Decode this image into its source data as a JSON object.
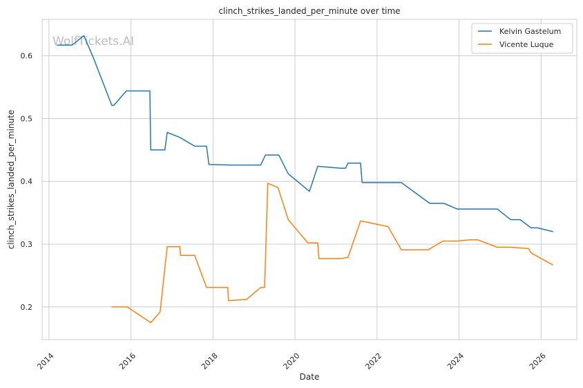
{
  "chart_data": {
    "type": "line",
    "title": "clinch_strikes_landed_per_minute over time",
    "xlabel": "Date",
    "ylabel": "clinch_strikes_landed_per_minute",
    "xlim": [
      "2013-11-01",
      "2026-11-15"
    ],
    "ylim": [
      0.148,
      0.658
    ],
    "x_ticks": [
      "2014",
      "2016",
      "2018",
      "2020",
      "2022",
      "2024",
      "2026"
    ],
    "y_ticks": [
      0.2,
      0.3,
      0.4,
      0.5,
      0.6
    ],
    "grid": true,
    "legend_position": "top-right",
    "watermark": "WolfTickets.AI",
    "series": [
      {
        "name": "Kelvin Gastelum",
        "color": "#1f77b4",
        "points": [
          [
            "2014-03-15",
            0.617
          ],
          [
            "2014-07-26",
            0.617
          ],
          [
            "2014-11-08",
            0.632
          ],
          [
            "2015-01-31",
            0.597
          ],
          [
            "2015-07-15",
            0.521
          ],
          [
            "2015-08-01",
            0.521
          ],
          [
            "2015-11-21",
            0.544
          ],
          [
            "2016-06-18",
            0.544
          ],
          [
            "2016-06-25",
            0.45
          ],
          [
            "2016-10-29",
            0.45
          ],
          [
            "2016-11-19",
            0.478
          ],
          [
            "2017-03-11",
            0.47
          ],
          [
            "2017-07-22",
            0.456
          ],
          [
            "2017-11-04",
            0.456
          ],
          [
            "2017-11-25",
            0.427
          ],
          [
            "2018-05-26",
            0.426
          ],
          [
            "2019-03-02",
            0.426
          ],
          [
            "2019-04-13",
            0.442
          ],
          [
            "2019-08-10",
            0.442
          ],
          [
            "2019-11-02",
            0.412
          ],
          [
            "2020-05-09",
            0.384
          ],
          [
            "2020-07-22",
            0.424
          ],
          [
            "2021-02-11",
            0.421
          ],
          [
            "2021-03-27",
            0.421
          ],
          [
            "2021-04-17",
            0.429
          ],
          [
            "2021-08-07",
            0.429
          ],
          [
            "2021-08-21",
            0.398
          ],
          [
            "2022-08-06",
            0.398
          ],
          [
            "2023-04-15",
            0.365
          ],
          [
            "2023-08-19",
            0.365
          ],
          [
            "2023-12-16",
            0.356
          ],
          [
            "2024-06-29",
            0.356
          ],
          [
            "2024-12-07",
            0.356
          ],
          [
            "2025-04-05",
            0.339
          ],
          [
            "2025-06-28",
            0.339
          ],
          [
            "2025-10-04",
            0.326
          ],
          [
            "2025-11-29",
            0.326
          ],
          [
            "2026-04-15",
            0.32
          ]
        ]
      },
      {
        "name": "Vicente Luque",
        "color": "#ff7f0e",
        "points": [
          [
            "2015-07-15",
            0.2
          ],
          [
            "2015-11-29",
            0.2
          ],
          [
            "2016-06-25",
            0.175
          ],
          [
            "2016-09-17",
            0.192
          ],
          [
            "2016-11-19",
            0.296
          ],
          [
            "2017-03-11",
            0.296
          ],
          [
            "2017-03-18",
            0.282
          ],
          [
            "2017-07-22",
            0.282
          ],
          [
            "2017-11-04",
            0.231
          ],
          [
            "2018-05-12",
            0.231
          ],
          [
            "2018-05-19",
            0.21
          ],
          [
            "2018-10-27",
            0.212
          ],
          [
            "2019-03-02",
            0.231
          ],
          [
            "2019-04-06",
            0.231
          ],
          [
            "2019-05-04",
            0.397
          ],
          [
            "2019-08-03",
            0.39
          ],
          [
            "2019-11-02",
            0.339
          ],
          [
            "2020-04-25",
            0.302
          ],
          [
            "2020-07-22",
            0.302
          ],
          [
            "2020-08-01",
            0.277
          ],
          [
            "2021-02-11",
            0.277
          ],
          [
            "2021-04-17",
            0.279
          ],
          [
            "2021-08-07",
            0.337
          ],
          [
            "2022-04-09",
            0.328
          ],
          [
            "2022-08-06",
            0.291
          ],
          [
            "2023-04-01",
            0.291
          ],
          [
            "2023-08-12",
            0.305
          ],
          [
            "2023-12-16",
            0.305
          ],
          [
            "2024-04-13",
            0.307
          ],
          [
            "2024-06-15",
            0.307
          ],
          [
            "2024-12-07",
            0.295
          ],
          [
            "2025-04-05",
            0.295
          ],
          [
            "2025-09-13",
            0.293
          ],
          [
            "2025-10-04",
            0.286
          ],
          [
            "2026-04-15",
            0.267
          ]
        ]
      }
    ]
  }
}
